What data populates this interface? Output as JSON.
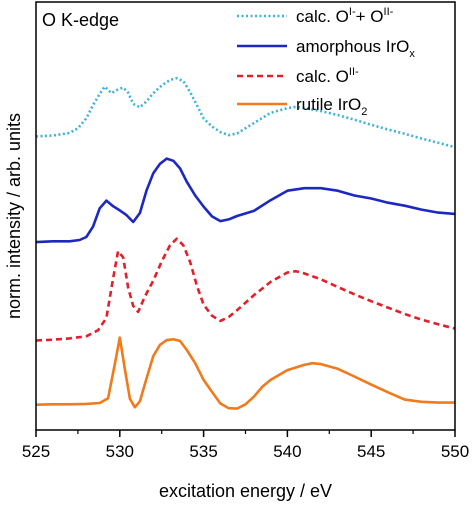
{
  "chart_data": {
    "type": "line",
    "title": "",
    "panel_label": "O K-edge",
    "xlabel": "excitation energy / eV",
    "ylabel": "norm. intensity / arb. units",
    "xlim": [
      525,
      550
    ],
    "ylim": [
      0,
      1
    ],
    "xticks": [
      525,
      530,
      535,
      540,
      545,
      550
    ],
    "xtick_labels": [
      "525",
      "530",
      "535",
      "540",
      "545",
      "550"
    ],
    "legend_position": "top-right",
    "grid": false,
    "series": [
      {
        "legend": {
          "main": "calc. O",
          "sup1": "I-",
          "mid": "+ O",
          "sup2": "II-",
          "sub": ""
        },
        "color": "#3cb4d8",
        "dash": "dotted",
        "x": [
          525,
          526,
          527,
          527.5,
          528,
          528.4,
          528.8,
          529.1,
          529.5,
          529.9,
          530.2,
          530.5,
          530.8,
          531.2,
          531.6,
          532.0,
          532.5,
          533.0,
          533.4,
          533.8,
          534.2,
          534.6,
          535.0,
          535.5,
          536.0,
          536.5,
          537.0,
          538.0,
          539.0,
          540.0,
          540.5,
          541.0,
          542.0,
          543.0,
          544.0,
          545.0,
          546.0,
          547.0,
          548.0,
          549.0,
          550.0
        ],
        "y": [
          0.686,
          0.688,
          0.694,
          0.705,
          0.728,
          0.759,
          0.785,
          0.802,
          0.787,
          0.796,
          0.8,
          0.788,
          0.762,
          0.754,
          0.768,
          0.787,
          0.805,
          0.818,
          0.822,
          0.815,
          0.789,
          0.759,
          0.728,
          0.709,
          0.696,
          0.689,
          0.693,
          0.717,
          0.741,
          0.752,
          0.755,
          0.752,
          0.745,
          0.736,
          0.725,
          0.713,
          0.702,
          0.692,
          0.681,
          0.671,
          0.661
        ]
      },
      {
        "legend": {
          "main": "amorphous IrO",
          "sup1": "",
          "mid": "",
          "sup2": "",
          "sub": "x"
        },
        "color": "#1c28c0",
        "dash": "solid",
        "x": [
          525,
          526,
          527,
          527.6,
          528.0,
          528.4,
          528.8,
          529.2,
          529.6,
          530.0,
          530.4,
          530.8,
          531.2,
          531.6,
          532.0,
          532.4,
          532.8,
          533.2,
          533.6,
          534.0,
          534.5,
          535.0,
          535.5,
          536.0,
          536.5,
          537.0,
          538.0,
          539.0,
          540.0,
          541.0,
          542.0,
          543.0,
          544.0,
          545.0,
          546.0,
          547.0,
          548.0,
          549.0,
          550.0
        ],
        "y": [
          0.439,
          0.441,
          0.441,
          0.444,
          0.451,
          0.475,
          0.518,
          0.536,
          0.523,
          0.513,
          0.502,
          0.486,
          0.507,
          0.56,
          0.6,
          0.622,
          0.634,
          0.629,
          0.611,
          0.58,
          0.548,
          0.522,
          0.499,
          0.488,
          0.492,
          0.5,
          0.512,
          0.537,
          0.559,
          0.565,
          0.565,
          0.559,
          0.548,
          0.541,
          0.531,
          0.524,
          0.515,
          0.508,
          0.505
        ]
      },
      {
        "legend": {
          "main": "calc. O",
          "sup1": "II-",
          "mid": "",
          "sup2": "",
          "sub": ""
        },
        "color": "#e0202a",
        "dash": "dashed",
        "x": [
          525,
          526,
          527,
          528,
          528.7,
          529.2,
          529.6,
          529.9,
          530.2,
          530.5,
          530.8,
          531.1,
          531.5,
          532.0,
          532.5,
          533.0,
          533.4,
          533.8,
          534.2,
          534.6,
          535.0,
          535.5,
          536.0,
          536.5,
          537.0,
          538.0,
          539.0,
          540.0,
          540.5,
          541.0,
          542.0,
          543.0,
          544.0,
          545.0,
          546.0,
          547.0,
          548.0,
          549.0,
          550.0
        ],
        "y": [
          0.209,
          0.211,
          0.214,
          0.219,
          0.233,
          0.262,
          0.354,
          0.418,
          0.403,
          0.332,
          0.29,
          0.276,
          0.312,
          0.349,
          0.394,
          0.432,
          0.447,
          0.431,
          0.392,
          0.337,
          0.293,
          0.267,
          0.255,
          0.264,
          0.28,
          0.315,
          0.346,
          0.368,
          0.371,
          0.366,
          0.352,
          0.334,
          0.317,
          0.301,
          0.286,
          0.271,
          0.258,
          0.247,
          0.237
        ]
      },
      {
        "legend": {
          "main": "rutile IrO",
          "sup1": "",
          "mid": "",
          "sup2": "",
          "sub": "2"
        },
        "color": "#f07a1c",
        "dash": "solid",
        "x": [
          525,
          526,
          527,
          528,
          528.8,
          529.3,
          529.7,
          530.0,
          530.3,
          530.6,
          530.9,
          531.2,
          531.6,
          532.0,
          532.4,
          532.8,
          533.2,
          533.6,
          534.0,
          534.5,
          535.0,
          535.5,
          536.0,
          536.5,
          537.0,
          537.5,
          538.0,
          538.5,
          539.0,
          540.0,
          541.0,
          541.5,
          542.0,
          543.0,
          544.0,
          545.0,
          546.0,
          547.0,
          548.0,
          549.0,
          550.0
        ],
        "y": [
          0.059,
          0.06,
          0.06,
          0.061,
          0.063,
          0.074,
          0.154,
          0.216,
          0.143,
          0.073,
          0.053,
          0.067,
          0.121,
          0.173,
          0.199,
          0.21,
          0.212,
          0.208,
          0.187,
          0.156,
          0.117,
          0.089,
          0.062,
          0.051,
          0.05,
          0.06,
          0.078,
          0.101,
          0.117,
          0.14,
          0.152,
          0.156,
          0.154,
          0.143,
          0.125,
          0.106,
          0.088,
          0.071,
          0.066,
          0.064,
          0.064
        ]
      }
    ]
  }
}
